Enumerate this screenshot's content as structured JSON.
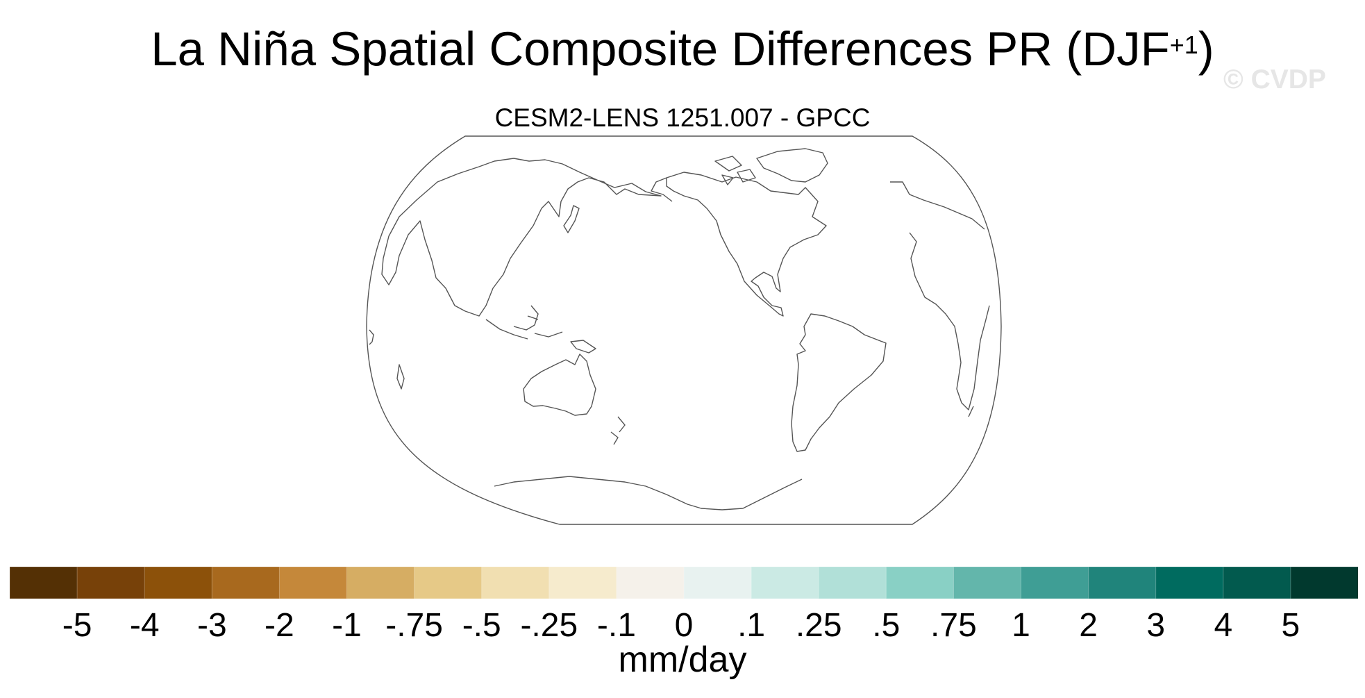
{
  "title": {
    "main": "La Niña Spatial Composite Differences PR (DJF",
    "superscript": "+1",
    "close": ")"
  },
  "watermark": "© CVDP",
  "subtitle": "CESM2-LENS 1251.007 - GPCC",
  "map": {
    "projection": "robinson",
    "center_longitude": 180,
    "fill": "uniform (no significant differences shown)",
    "coastline_color": "#555555"
  },
  "colorbar": {
    "unit": "mm/day",
    "colors": [
      "#543005",
      "#774109",
      "#8c510a",
      "#a8691e",
      "#c5883a",
      "#d6ad63",
      "#e6c987",
      "#f1dfb1",
      "#f6ebcd",
      "#f5f1ea",
      "#e8f2f0",
      "#cbeae4",
      "#b1e0d8",
      "#89d0c5",
      "#63b6ab",
      "#3f9e95",
      "#20847b",
      "#006b5f",
      "#025a4e",
      "#01392e"
    ],
    "ticks": [
      "-5",
      "-4",
      "-3",
      "-2",
      "-1",
      "-.75",
      "-.5",
      "-.25",
      "-.1",
      "0",
      ".1",
      ".25",
      ".5",
      ".75",
      "1",
      "2",
      "3",
      "4",
      "5"
    ]
  }
}
